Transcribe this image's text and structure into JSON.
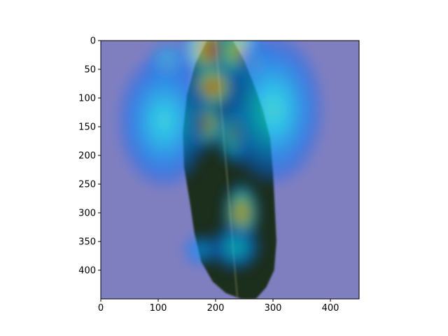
{
  "chart_data": {
    "type": "heatmap",
    "title": "",
    "xlabel": "",
    "ylabel": "",
    "xlim": [
      0,
      450
    ],
    "ylim": [
      450,
      0
    ],
    "x_ticks": [
      0,
      100,
      200,
      300,
      400
    ],
    "y_ticks": [
      0,
      50,
      100,
      150,
      200,
      250,
      300,
      350,
      400
    ],
    "x_tick_labels": [
      "0",
      "100",
      "200",
      "300",
      "400"
    ],
    "y_tick_labels": [
      "0",
      "50",
      "100",
      "150",
      "200",
      "250",
      "300",
      "350",
      "400"
    ],
    "colormap": "jet",
    "overlay_alpha": 0.5,
    "background_color": "#808080",
    "underlay_image": "leaf",
    "leaf_outline": [
      [
        185,
        0
      ],
      [
        230,
        0
      ],
      [
        250,
        35
      ],
      [
        268,
        80
      ],
      [
        282,
        120
      ],
      [
        295,
        170
      ],
      [
        300,
        230
      ],
      [
        303,
        290
      ],
      [
        306,
        350
      ],
      [
        302,
        400
      ],
      [
        288,
        430
      ],
      [
        270,
        450
      ],
      [
        245,
        450
      ],
      [
        218,
        440
      ],
      [
        195,
        420
      ],
      [
        175,
        385
      ],
      [
        163,
        335
      ],
      [
        155,
        280
      ],
      [
        145,
        220
      ],
      [
        143,
        160
      ],
      [
        150,
        95
      ],
      [
        165,
        40
      ]
    ],
    "activation_hotspots": [
      {
        "x": 195,
        "y": 15,
        "intensity": 1.0,
        "rx": 40,
        "ry": 40
      },
      {
        "x": 195,
        "y": 80,
        "intensity": 0.98,
        "rx": 32,
        "ry": 30
      },
      {
        "x": 240,
        "y": 20,
        "intensity": 0.78,
        "rx": 30,
        "ry": 40
      },
      {
        "x": 270,
        "y": 45,
        "intensity": 0.72,
        "rx": 24,
        "ry": 30
      },
      {
        "x": 115,
        "y": 45,
        "intensity": 0.6,
        "rx": 24,
        "ry": 28
      },
      {
        "x": 180,
        "y": 145,
        "intensity": 0.95,
        "rx": 24,
        "ry": 32
      },
      {
        "x": 235,
        "y": 160,
        "intensity": 0.72,
        "rx": 24,
        "ry": 40
      },
      {
        "x": 245,
        "y": 300,
        "intensity": 0.88,
        "rx": 22,
        "ry": 38
      },
      {
        "x": 235,
        "y": 360,
        "intensity": 0.4,
        "rx": 30,
        "ry": 28
      },
      {
        "x": 175,
        "y": 365,
        "intensity": 0.34,
        "rx": 20,
        "ry": 18
      },
      {
        "x": 110,
        "y": 140,
        "intensity": 0.42,
        "rx": 55,
        "ry": 80
      },
      {
        "x": 300,
        "y": 120,
        "intensity": 0.44,
        "rx": 60,
        "ry": 90
      }
    ]
  }
}
